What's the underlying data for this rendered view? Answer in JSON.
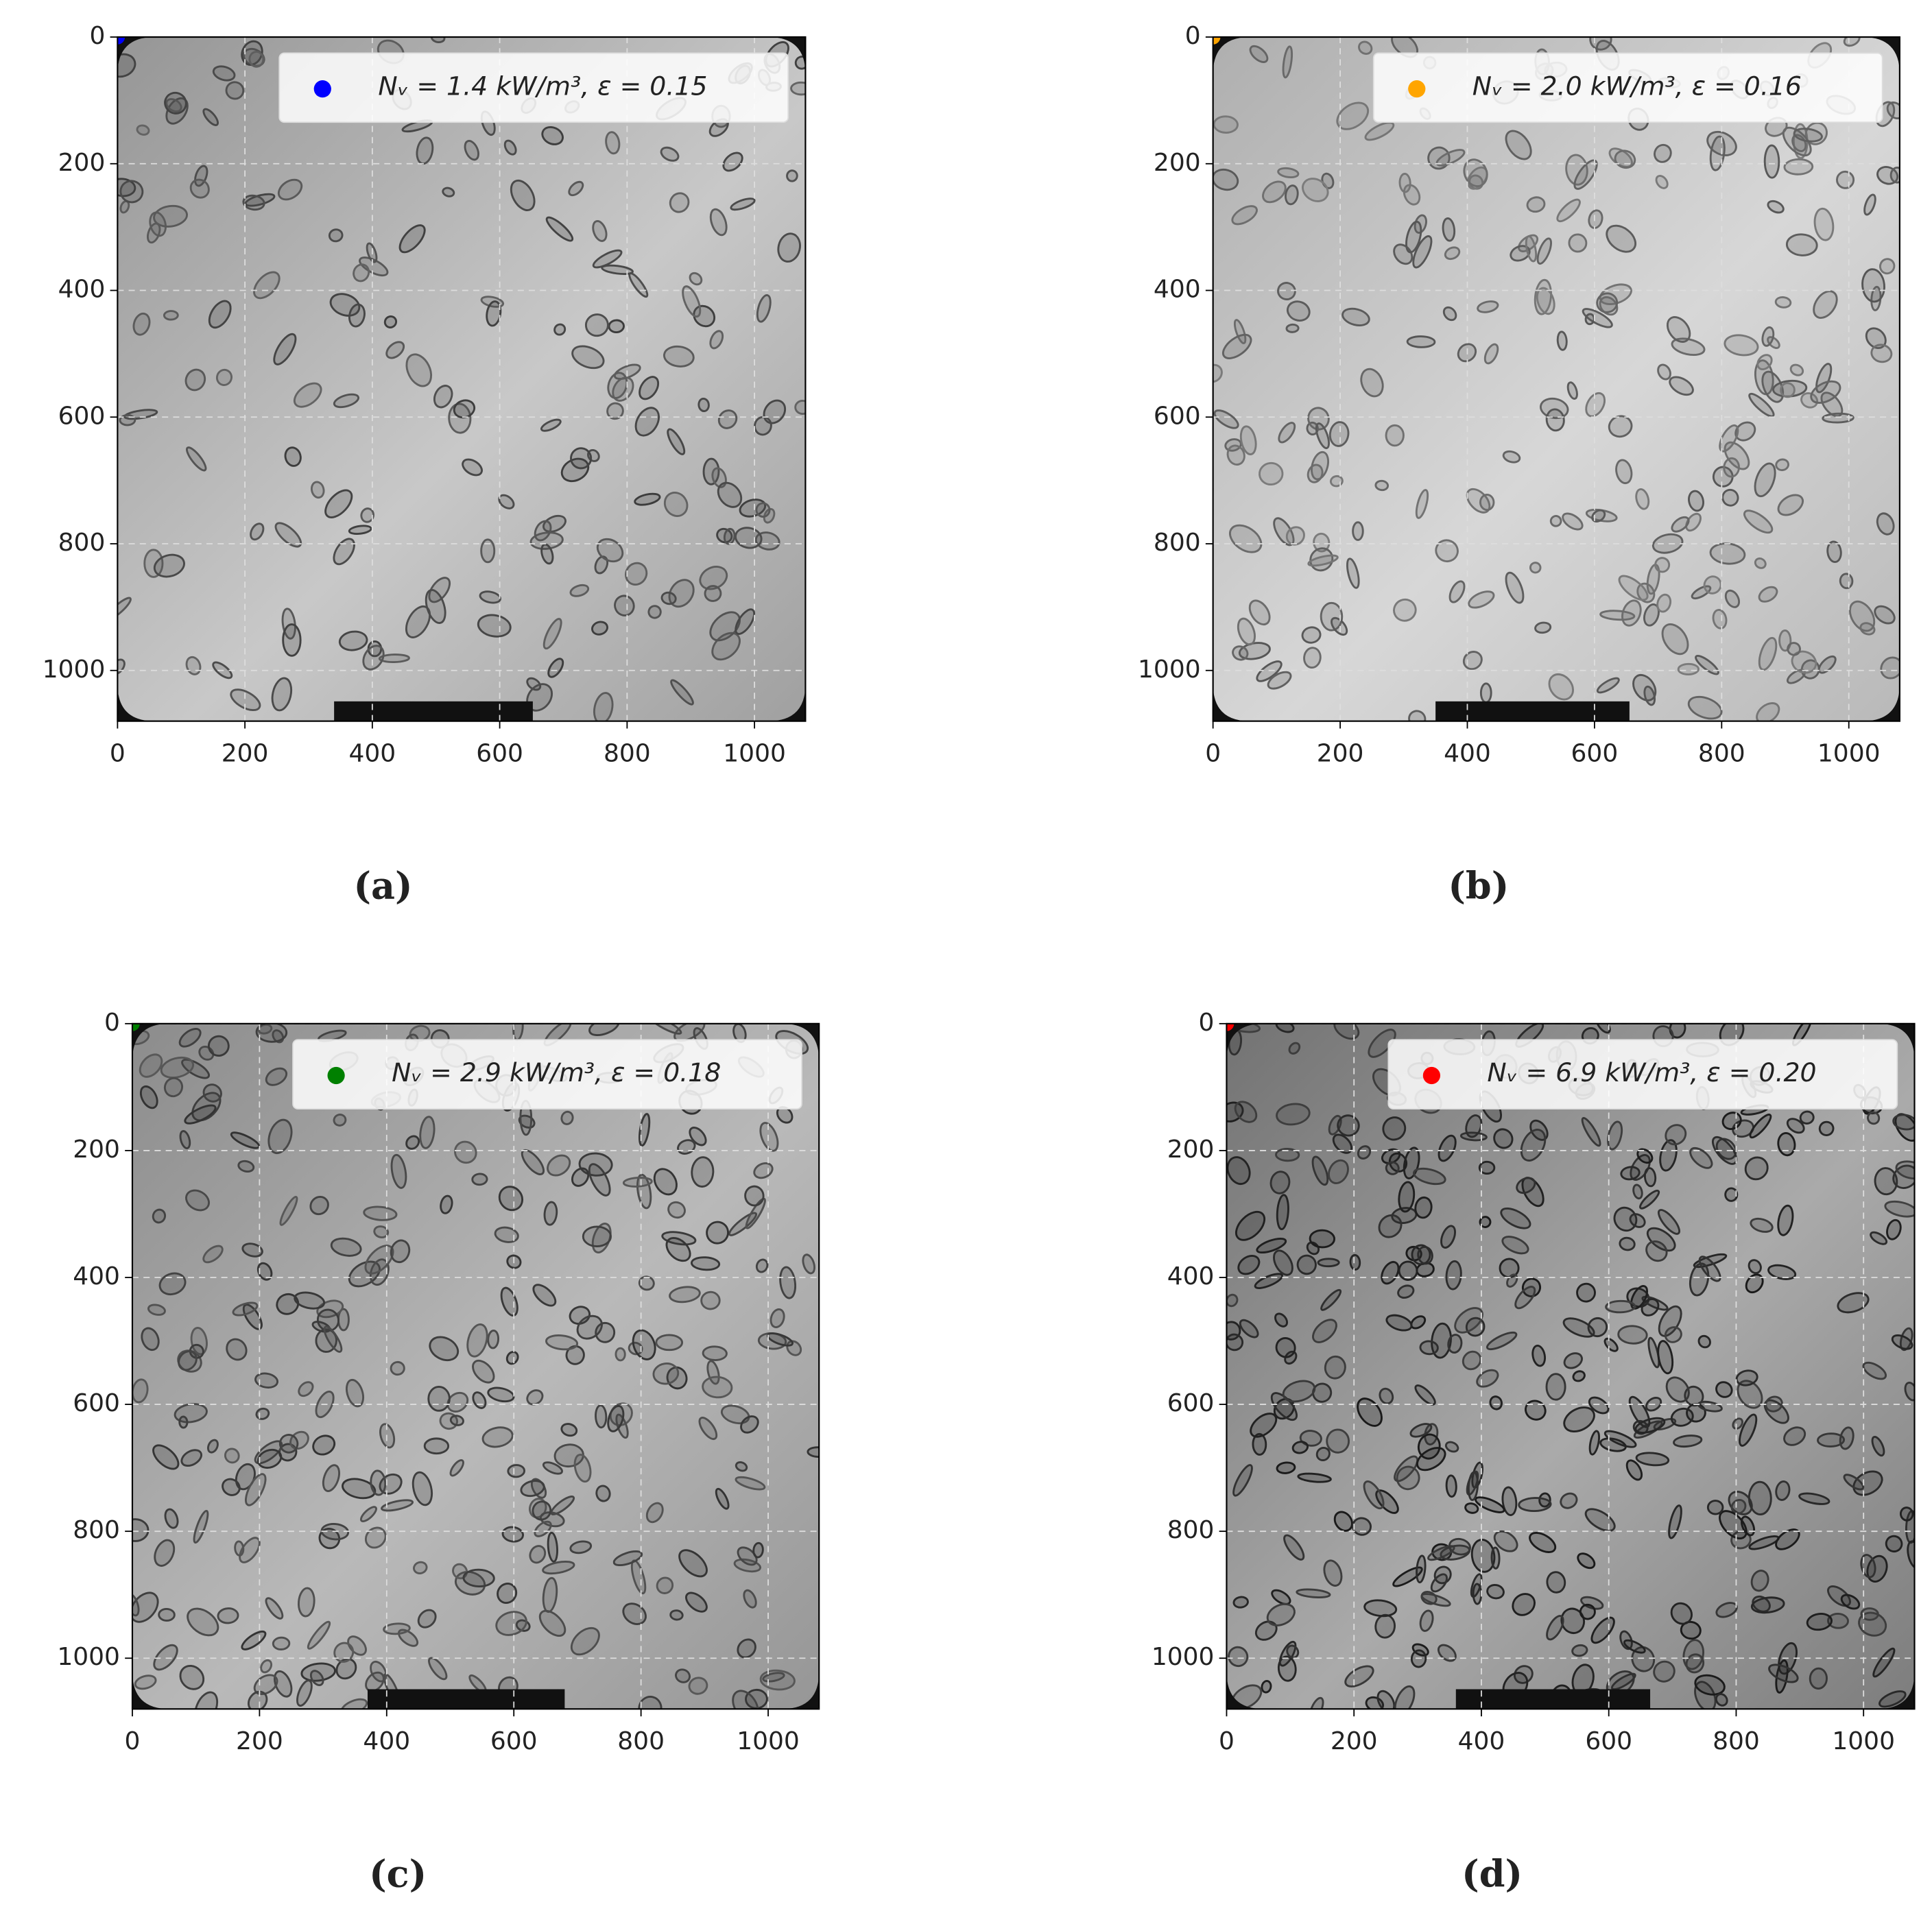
{
  "chart_data": [
    {
      "type": "image",
      "caption": "(a)",
      "legend": "upper right",
      "grid": true,
      "series": [
        {
          "name": "Nᵥ = 1.4 kW/m³, ε = 0.15",
          "color": "#0000ff",
          "x": [
            0
          ],
          "values": [
            0
          ]
        }
      ],
      "xlim": [
        0,
        1080
      ],
      "ylim": [
        1080,
        0
      ],
      "xticks": [
        0,
        200,
        400,
        600,
        800,
        1000
      ],
      "yticks": [
        0,
        200,
        400,
        600,
        800,
        1000
      ]
    },
    {
      "type": "image",
      "caption": "(b)",
      "legend": "upper right",
      "grid": true,
      "series": [
        {
          "name": "Nᵥ = 2.0 kW/m³, ε = 0.16",
          "color": "#ffa500",
          "x": [
            0
          ],
          "values": [
            0
          ]
        }
      ],
      "xlim": [
        0,
        1080
      ],
      "ylim": [
        1080,
        0
      ],
      "xticks": [
        0,
        200,
        400,
        600,
        800,
        1000
      ],
      "yticks": [
        0,
        200,
        400,
        600,
        800,
        1000
      ]
    },
    {
      "type": "image",
      "caption": "(c)",
      "legend": "upper right",
      "grid": true,
      "series": [
        {
          "name": "Nᵥ = 2.9 kW/m³, ε = 0.18",
          "color": "#008000",
          "x": [
            0
          ],
          "values": [
            0
          ]
        }
      ],
      "xlim": [
        0,
        1080
      ],
      "ylim": [
        1080,
        0
      ],
      "xticks": [
        0,
        200,
        400,
        600,
        800,
        1000
      ],
      "yticks": [
        0,
        200,
        400,
        600,
        800,
        1000
      ]
    },
    {
      "type": "image",
      "caption": "(d)",
      "legend": "upper right",
      "grid": true,
      "series": [
        {
          "name": "Nᵥ = 6.9 kW/m³, ε = 0.20",
          "color": "#ff0000",
          "x": [
            0
          ],
          "values": [
            0
          ]
        }
      ],
      "xlim": [
        0,
        1080
      ],
      "ylim": [
        1080,
        0
      ],
      "xticks": [
        0,
        200,
        400,
        600,
        800,
        1000
      ],
      "yticks": [
        0,
        200,
        400,
        600,
        800,
        1000
      ]
    }
  ]
}
